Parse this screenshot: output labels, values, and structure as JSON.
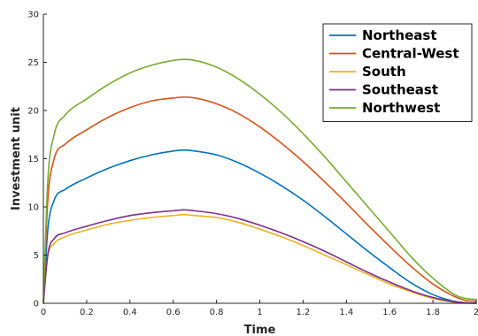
{
  "chart_data": {
    "type": "line",
    "title": "",
    "xlabel": "Time",
    "ylabel": "Investment unit",
    "xlim": [
      0,
      2
    ],
    "ylim": [
      0,
      30
    ],
    "x_ticks": [
      0,
      0.2,
      0.4,
      0.6,
      0.8,
      1,
      1.2,
      1.4,
      1.6,
      1.8,
      2
    ],
    "x_tick_labels": [
      "0",
      "0.2",
      "0.4",
      "0.6",
      "0.8",
      "1",
      "1.2",
      "1.4",
      "1.6",
      "1.8",
      "2"
    ],
    "y_ticks": [
      0,
      5,
      10,
      15,
      20,
      25,
      30
    ],
    "y_tick_labels": [
      "0",
      "5",
      "10",
      "15",
      "20",
      "25",
      "30"
    ],
    "grid": false,
    "legend_position": "top-right",
    "x": [
      0,
      0.02,
      0.05,
      0.1,
      0.2,
      0.3,
      0.4,
      0.5,
      0.6,
      0.65,
      0.7,
      0.8,
      0.9,
      1.0,
      1.1,
      1.2,
      1.3,
      1.4,
      1.5,
      1.6,
      1.7,
      1.8,
      1.9,
      1.95,
      2.0
    ],
    "series": [
      {
        "name": "Northeast",
        "color": "#0072BD",
        "values": [
          0,
          7.5,
          10.7,
          11.8,
          13.0,
          14.0,
          14.8,
          15.4,
          15.8,
          15.9,
          15.8,
          15.4,
          14.6,
          13.5,
          12.2,
          10.7,
          9.0,
          7.2,
          5.4,
          3.7,
          2.1,
          0.9,
          0.2,
          0.05,
          0.0
        ]
      },
      {
        "name": "Central-West",
        "color": "#D95319",
        "values": [
          0,
          10.5,
          15.0,
          16.5,
          18.0,
          19.3,
          20.3,
          21.0,
          21.3,
          21.4,
          21.3,
          20.7,
          19.7,
          18.3,
          16.6,
          14.7,
          12.6,
          10.4,
          8.1,
          5.9,
          3.8,
          2.0,
          0.7,
          0.3,
          0.2
        ]
      },
      {
        "name": "South",
        "color": "#EDB120",
        "values": [
          0,
          4.8,
          6.2,
          6.9,
          7.6,
          8.2,
          8.6,
          8.9,
          9.1,
          9.2,
          9.1,
          8.9,
          8.4,
          7.7,
          6.9,
          6.0,
          5.0,
          4.0,
          3.0,
          2.0,
          1.2,
          0.5,
          0.1,
          0.0,
          0.0
        ]
      },
      {
        "name": "Southeast",
        "color": "#7E2F8E",
        "values": [
          0,
          5.0,
          6.7,
          7.3,
          8.0,
          8.6,
          9.1,
          9.4,
          9.6,
          9.7,
          9.6,
          9.3,
          8.8,
          8.1,
          7.3,
          6.4,
          5.4,
          4.3,
          3.2,
          2.2,
          1.3,
          0.6,
          0.15,
          0.05,
          0.0
        ]
      },
      {
        "name": "Northwest",
        "color": "#77AC30",
        "values": [
          0,
          12.5,
          17.5,
          19.5,
          21.2,
          22.7,
          23.9,
          24.7,
          25.2,
          25.3,
          25.2,
          24.5,
          23.3,
          21.7,
          19.8,
          17.6,
          15.2,
          12.6,
          10.0,
          7.4,
          4.8,
          2.6,
          0.9,
          0.5,
          0.4
        ]
      }
    ]
  }
}
